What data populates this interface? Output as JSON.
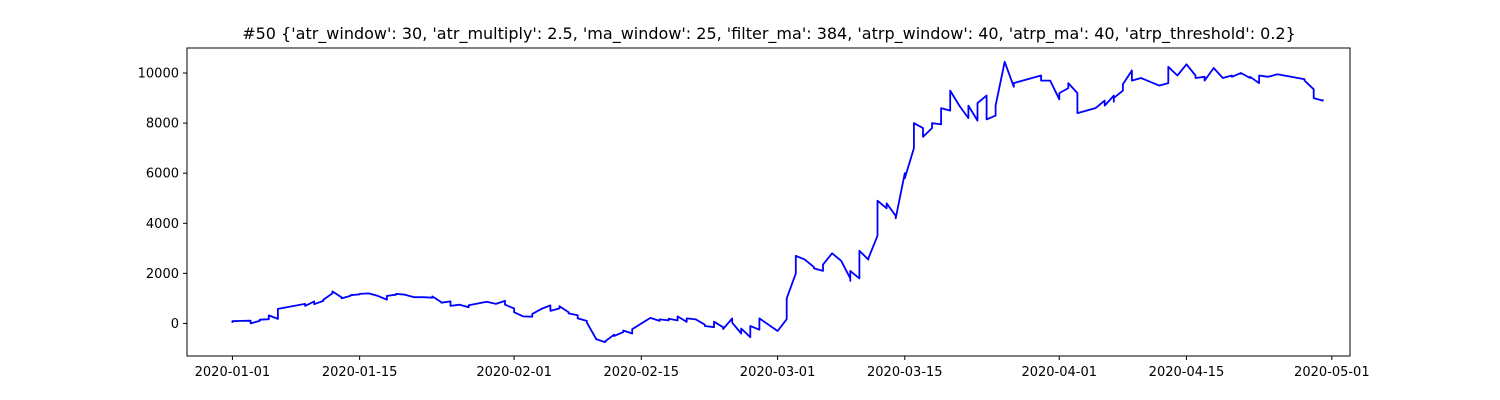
{
  "chart_data": {
    "type": "line",
    "title": "#50 {'atr_window': 30, 'atr_multiply': 2.5, 'ma_window': 25, 'filter_ma': 384, 'atrp_window': 40, 'atrp_ma': 40, 'atrp_threshold': 0.2}",
    "xlabel": "",
    "ylabel": "",
    "x_type": "date",
    "xlim": [
      "2019-12-27",
      "2020-05-03"
    ],
    "ylim": [
      -1300,
      11000
    ],
    "x_ticks": [
      "2020-01-01",
      "2020-01-15",
      "2020-02-01",
      "2020-02-15",
      "2020-03-01",
      "2020-03-15",
      "2020-04-01",
      "2020-04-15",
      "2020-05-01"
    ],
    "y_ticks": [
      0,
      2000,
      4000,
      6000,
      8000,
      10000
    ],
    "y_tick_labels": [
      "0",
      "2000",
      "4000",
      "6000",
      "8000",
      "10000"
    ],
    "grid": false,
    "legend": null,
    "series": [
      {
        "color": "#0000ff",
        "x": [
          "2020-01-01",
          "2020-01-01",
          "2020-01-02",
          "2020-01-03",
          "2020-01-03",
          "2020-01-04",
          "2020-01-04",
          "2020-01-05",
          "2020-01-05",
          "2020-01-06",
          "2020-01-06",
          "2020-01-09",
          "2020-01-09",
          "2020-01-10",
          "2020-01-10",
          "2020-01-11",
          "2020-01-11",
          "2020-01-12",
          "2020-01-12",
          "2020-01-13",
          "2020-01-13",
          "2020-01-14",
          "2020-01-14",
          "2020-01-15",
          "2020-01-15",
          "2020-01-16",
          "2020-01-17",
          "2020-01-18",
          "2020-01-18",
          "2020-01-19",
          "2020-01-19",
          "2020-01-20",
          "2020-01-21",
          "2020-01-22",
          "2020-01-23",
          "2020-01-23",
          "2020-01-24",
          "2020-01-24",
          "2020-01-25",
          "2020-01-25",
          "2020-01-26",
          "2020-01-27",
          "2020-01-27",
          "2020-01-29",
          "2020-01-30",
          "2020-01-31",
          "2020-01-31",
          "2020-02-01",
          "2020-02-01",
          "2020-02-02",
          "2020-02-03",
          "2020-02-03",
          "2020-02-04",
          "2020-02-05",
          "2020-02-05",
          "2020-02-06",
          "2020-02-06",
          "2020-02-07",
          "2020-02-07",
          "2020-02-08",
          "2020-02-08",
          "2020-02-09",
          "2020-02-09",
          "2020-02-10",
          "2020-02-10",
          "2020-02-11",
          "2020-02-11",
          "2020-02-12",
          "2020-02-12",
          "2020-02-13",
          "2020-02-13",
          "2020-02-14",
          "2020-02-14",
          "2020-02-16",
          "2020-02-17",
          "2020-02-17",
          "2020-02-18",
          "2020-02-18",
          "2020-02-19",
          "2020-02-19",
          "2020-02-20",
          "2020-02-20",
          "2020-02-21",
          "2020-02-22",
          "2020-02-22",
          "2020-02-23",
          "2020-02-23",
          "2020-02-24",
          "2020-02-24",
          "2020-02-25",
          "2020-02-25",
          "2020-02-26",
          "2020-02-26",
          "2020-02-27",
          "2020-02-27",
          "2020-02-28",
          "2020-02-28",
          "2020-03-01",
          "2020-03-02",
          "2020-03-02",
          "2020-03-03",
          "2020-03-03",
          "2020-03-04",
          "2020-03-05",
          "2020-03-05",
          "2020-03-06",
          "2020-03-06",
          "2020-03-07",
          "2020-03-08",
          "2020-03-09",
          "2020-03-09",
          "2020-03-09",
          "2020-03-10",
          "2020-03-10",
          "2020-03-10",
          "2020-03-11",
          "2020-03-11",
          "2020-03-12",
          "2020-03-12",
          "2020-03-12",
          "2020-03-13",
          "2020-03-13",
          "2020-03-14",
          "2020-03-14",
          "2020-03-15",
          "2020-03-15",
          "2020-03-16",
          "2020-03-16",
          "2020-03-16",
          "2020-03-17",
          "2020-03-17",
          "2020-03-18",
          "2020-03-18",
          "2020-03-19",
          "2020-03-19",
          "2020-03-20",
          "2020-03-20",
          "2020-03-21",
          "2020-03-22",
          "2020-03-22",
          "2020-03-23",
          "2020-03-23",
          "2020-03-24",
          "2020-03-24",
          "2020-03-25",
          "2020-03-25",
          "2020-03-26",
          "2020-03-27",
          "2020-03-27",
          "2020-03-30",
          "2020-03-30",
          "2020-03-31",
          "2020-04-01",
          "2020-04-01",
          "2020-04-02",
          "2020-04-02",
          "2020-04-03",
          "2020-04-03",
          "2020-04-03",
          "2020-04-05",
          "2020-04-06",
          "2020-04-06",
          "2020-04-07",
          "2020-04-07",
          "2020-04-07",
          "2020-04-08",
          "2020-04-08",
          "2020-04-09",
          "2020-04-09",
          "2020-04-10",
          "2020-04-12",
          "2020-04-13",
          "2020-04-13",
          "2020-04-14",
          "2020-04-15",
          "2020-04-16",
          "2020-04-16",
          "2020-04-17",
          "2020-04-17",
          "2020-04-18",
          "2020-04-19",
          "2020-04-20",
          "2020-04-20",
          "2020-04-21",
          "2020-04-22",
          "2020-04-22",
          "2020-04-23",
          "2020-04-23",
          "2020-04-24",
          "2020-04-25",
          "2020-04-28",
          "2020-04-28",
          "2020-04-29",
          "2020-04-29",
          "2020-04-30",
          "2020-04-30"
        ],
        "y": [
          20,
          90,
          100,
          110,
          0,
          100,
          150,
          170,
          320,
          180,
          580,
          780,
          700,
          880,
          770,
          900,
          950,
          1200,
          1280,
          1050,
          1000,
          1100,
          1130,
          1160,
          1180,
          1200,
          1100,
          950,
          1100,
          1150,
          1180,
          1150,
          1050,
          1050,
          1030,
          1080,
          850,
          830,
          880,
          700,
          750,
          650,
          730,
          870,
          780,
          900,
          750,
          600,
          450,
          280,
          270,
          380,
          580,
          720,
          500,
          600,
          690,
          450,
          400,
          330,
          200,
          100,
          40,
          -600,
          -620,
          -750,
          -720,
          -450,
          -500,
          -350,
          -280,
          -400,
          -230,
          220,
          100,
          160,
          120,
          190,
          120,
          280,
          60,
          200,
          160,
          -50,
          -100,
          -150,
          70,
          -150,
          -220,
          200,
          30,
          -400,
          -200,
          -550,
          -100,
          -250,
          200,
          -300,
          170,
          1000,
          2000,
          2700,
          2550,
          2250,
          2200,
          2100,
          2350,
          2800,
          2500,
          1800,
          1700,
          2100,
          1800,
          2600,
          2900,
          2550,
          2600,
          3500,
          4000,
          4900,
          4600,
          4800,
          4300,
          4200,
          6000,
          5800,
          7000,
          7700,
          8000,
          7800,
          7450,
          7800,
          8000,
          7950,
          8600,
          8500,
          9300,
          8700,
          8200,
          8700,
          8100,
          8800,
          9100,
          8150,
          8300,
          8700,
          10450,
          9450,
          9600,
          9900,
          9700,
          9700,
          8950,
          9200,
          9400,
          9600,
          9200,
          8800,
          8400,
          8600,
          8900,
          8700,
          9100,
          8850,
          9000,
          9300,
          9550,
          10100,
          9700,
          9800,
          9500,
          9600,
          10250,
          9900,
          10350,
          9900,
          9800,
          9850,
          9700,
          10200,
          9800,
          9900,
          9850,
          10000,
          9800,
          9850,
          9600,
          9900,
          9850,
          9950,
          9750,
          9700,
          9350,
          9000,
          8900,
          8950
        ]
      }
    ]
  }
}
